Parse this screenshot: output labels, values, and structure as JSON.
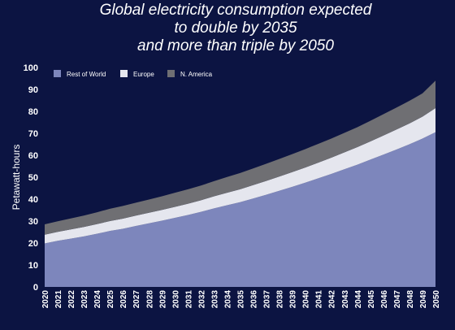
{
  "chart_data": {
    "type": "area",
    "stacked": true,
    "title_lines": [
      "Global electricity consumption expected",
      "to double by 2035",
      "and more than triple by 2050"
    ],
    "xlabel": "",
    "ylabel": "Petawatt-hours",
    "ylim": [
      0,
      100
    ],
    "yticks": [
      0,
      10,
      20,
      30,
      40,
      50,
      60,
      70,
      80,
      90,
      100
    ],
    "x": [
      "2020",
      "2021",
      "2022",
      "2023",
      "2024",
      "2025",
      "2026",
      "2027",
      "2028",
      "2029",
      "2030",
      "2031",
      "2032",
      "2033",
      "2034",
      "2035",
      "2036",
      "2037",
      "2038",
      "2039",
      "2040",
      "2041",
      "2042",
      "2043",
      "2044",
      "2045",
      "2046",
      "2047",
      "2048",
      "2049",
      "2050"
    ],
    "legend_position": "top-left",
    "series": [
      {
        "name": "Rest of World",
        "color": "#7d86bc",
        "values": [
          19.8,
          21.0,
          22.0,
          23.0,
          24.2,
          25.5,
          26.5,
          27.8,
          29.0,
          30.2,
          31.5,
          32.8,
          34.2,
          35.8,
          37.2,
          38.6,
          40.3,
          42.0,
          43.8,
          45.6,
          47.5,
          49.5,
          51.5,
          53.6,
          55.7,
          58.0,
          60.3,
          62.6,
          65.0,
          67.6,
          70.5
        ]
      },
      {
        "name": "Europe",
        "color": "#e5e6ee",
        "values": [
          4.0,
          4.1,
          4.2,
          4.3,
          4.4,
          4.5,
          4.6,
          4.7,
          4.8,
          4.9,
          5.0,
          5.1,
          5.3,
          5.5,
          5.7,
          5.9,
          6.1,
          6.3,
          6.5,
          6.7,
          6.9,
          7.1,
          7.4,
          7.7,
          8.0,
          8.3,
          8.7,
          9.1,
          9.5,
          10.0,
          11.0
        ]
      },
      {
        "name": "N. America",
        "color": "#6f6f73",
        "values": [
          4.7,
          4.8,
          5.0,
          5.2,
          5.4,
          5.6,
          5.8,
          5.9,
          6.0,
          6.2,
          6.4,
          6.6,
          6.7,
          6.9,
          7.2,
          7.4,
          7.6,
          7.8,
          8.0,
          8.2,
          8.4,
          8.6,
          8.7,
          8.9,
          9.1,
          9.4,
          9.7,
          10.0,
          10.3,
          10.6,
          12.5
        ]
      }
    ]
  }
}
